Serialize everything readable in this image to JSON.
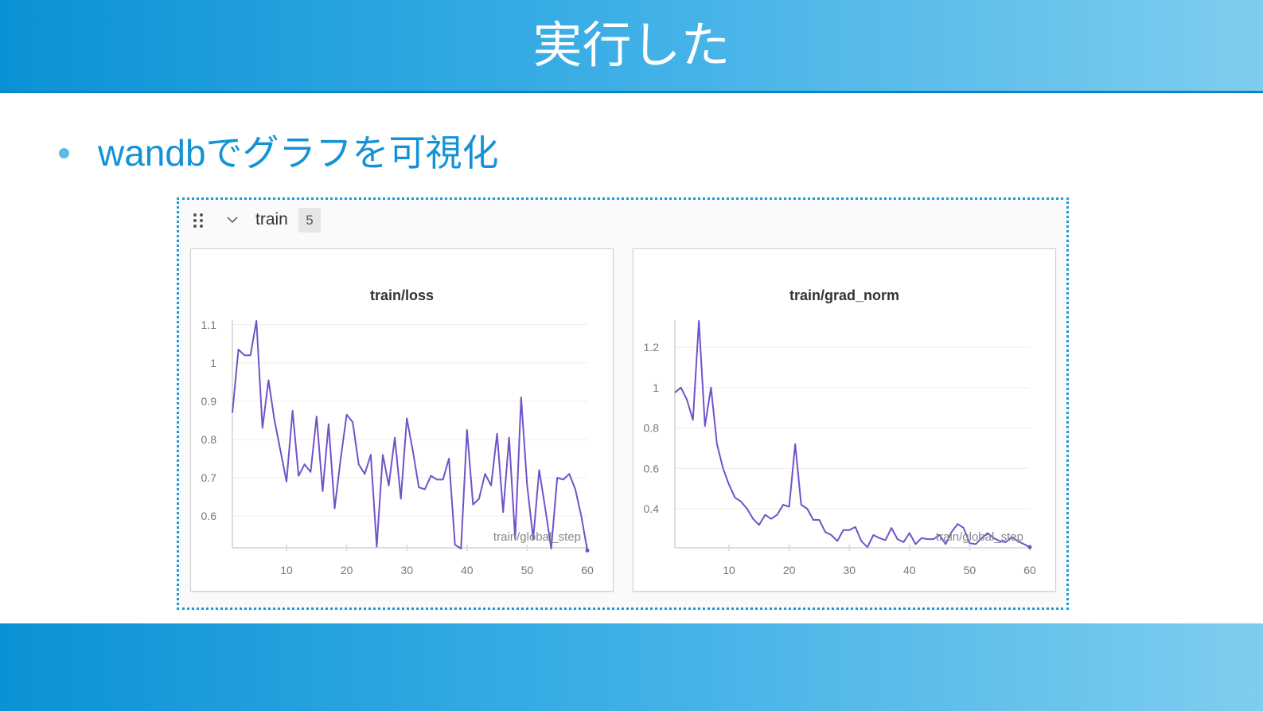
{
  "slide": {
    "title": "実行した",
    "bullet": "wandbでグラフを可視化"
  },
  "section": {
    "name": "train",
    "count": "5",
    "icons": [
      "drag-handle-icon",
      "chevron-down-icon"
    ]
  },
  "colors": {
    "line": "#7152c9",
    "header_start": "#0a92d6",
    "header_end": "#7fcdef",
    "bullet_text": "#1393d6"
  },
  "chart_data": [
    {
      "type": "line",
      "title": "train/loss",
      "xlabel": "train/global_step",
      "ylabel": "",
      "x_ticks": [
        "10",
        "20",
        "30",
        "40",
        "50",
        "60"
      ],
      "y_ticks": [
        "1.1",
        "1",
        "0.9",
        "0.8",
        "0.7",
        "0.6"
      ],
      "xlim": [
        1,
        60
      ],
      "ylim": [
        0.517,
        1.112
      ],
      "grid": true,
      "x": [
        1,
        2,
        3,
        4,
        5,
        6,
        7,
        8,
        9,
        10,
        11,
        12,
        13,
        14,
        15,
        16,
        17,
        18,
        19,
        20,
        21,
        22,
        23,
        24,
        25,
        26,
        27,
        28,
        29,
        30,
        31,
        32,
        33,
        34,
        35,
        36,
        37,
        38,
        39,
        40,
        41,
        42,
        43,
        44,
        45,
        46,
        47,
        48,
        49,
        50,
        51,
        52,
        53,
        54,
        55,
        56,
        57,
        58,
        59,
        60
      ],
      "values": [
        0.87,
        1.035,
        1.02,
        1.02,
        1.11,
        0.83,
        0.955,
        0.85,
        0.77,
        0.69,
        0.875,
        0.705,
        0.735,
        0.715,
        0.86,
        0.665,
        0.84,
        0.62,
        0.75,
        0.865,
        0.845,
        0.735,
        0.71,
        0.76,
        0.52,
        0.76,
        0.68,
        0.805,
        0.645,
        0.855,
        0.77,
        0.675,
        0.67,
        0.705,
        0.695,
        0.695,
        0.75,
        0.525,
        0.515,
        0.825,
        0.63,
        0.645,
        0.71,
        0.68,
        0.815,
        0.61,
        0.805,
        0.54,
        0.91,
        0.68,
        0.54,
        0.72,
        0.62,
        0.515,
        0.7,
        0.695,
        0.71,
        0.67,
        0.6,
        0.51
      ]
    },
    {
      "type": "line",
      "title": "train/grad_norm",
      "xlabel": "train/global_step",
      "ylabel": "",
      "x_ticks": [
        "10",
        "20",
        "30",
        "40",
        "50",
        "60"
      ],
      "y_ticks": [
        "1.2",
        "1",
        "0.8",
        "0.6",
        "0.4"
      ],
      "xlim": [
        1,
        60
      ],
      "ylim": [
        0.207,
        1.334
      ],
      "grid": true,
      "x": [
        1,
        2,
        3,
        4,
        5,
        6,
        7,
        8,
        9,
        10,
        11,
        12,
        13,
        14,
        15,
        16,
        17,
        18,
        19,
        20,
        21,
        22,
        23,
        24,
        25,
        26,
        27,
        28,
        29,
        30,
        31,
        32,
        33,
        34,
        35,
        36,
        37,
        38,
        39,
        40,
        41,
        42,
        43,
        44,
        45,
        46,
        47,
        48,
        49,
        50,
        51,
        52,
        53,
        54,
        55,
        56,
        57,
        58,
        59,
        60
      ],
      "values": [
        0.975,
        1.0,
        0.94,
        0.84,
        1.33,
        0.81,
        1.0,
        0.72,
        0.6,
        0.52,
        0.455,
        0.435,
        0.4,
        0.35,
        0.32,
        0.37,
        0.35,
        0.37,
        0.42,
        0.41,
        0.72,
        0.42,
        0.4,
        0.345,
        0.345,
        0.285,
        0.27,
        0.24,
        0.295,
        0.295,
        0.31,
        0.24,
        0.21,
        0.27,
        0.255,
        0.245,
        0.305,
        0.25,
        0.235,
        0.28,
        0.225,
        0.255,
        0.25,
        0.25,
        0.27,
        0.225,
        0.285,
        0.325,
        0.305,
        0.23,
        0.225,
        0.255,
        0.28,
        0.255,
        0.24,
        0.235,
        0.26,
        0.24,
        0.225,
        0.21
      ]
    }
  ]
}
